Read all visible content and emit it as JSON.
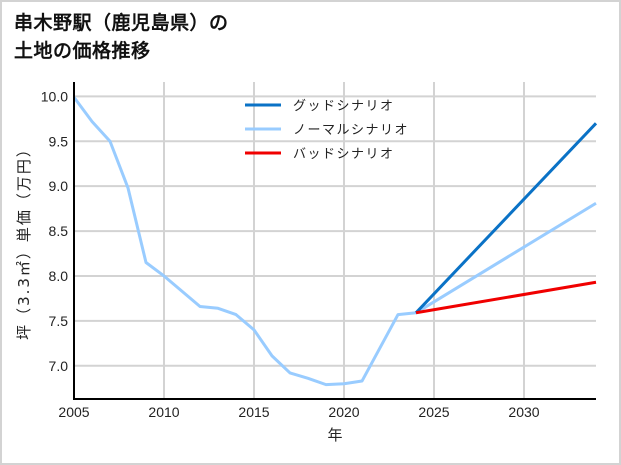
{
  "title": {
    "line1": "串木野駅（鹿児島県）の",
    "line2": "土地の価格推移"
  },
  "colors": {
    "good": "#0a72c6",
    "normal": "#99ccff",
    "bad": "#f00000",
    "grid": "#d3d3d3",
    "axis": "#000000",
    "frame": "#d3d3d3"
  },
  "chart_data": {
    "type": "line",
    "title": "串木野駅（鹿児島県）の土地の価格推移",
    "xlabel": "年",
    "ylabel": "坪（3.3㎡）単価（万円）",
    "xlim": [
      2005,
      2034
    ],
    "ylim": [
      6.63,
      10.16
    ],
    "grid": true,
    "legend_position": "upper center",
    "x_ticks": [
      2005,
      2010,
      2015,
      2020,
      2025,
      2030
    ],
    "y_ticks": [
      7.0,
      7.5,
      8.0,
      8.5,
      9.0,
      9.5,
      10.0
    ],
    "x_tick_labels": [
      "2005",
      "2010",
      "2015",
      "2020",
      "2025",
      "2030"
    ],
    "y_tick_labels": [
      "7.0",
      "7.5",
      "8.0",
      "8.5",
      "9.0",
      "9.5",
      "10.0"
    ],
    "series": [
      {
        "name": "グッドシナリオ",
        "color": "#0a72c6",
        "x": [
          2024,
          2034
        ],
        "values": [
          7.59,
          9.7
        ]
      },
      {
        "name": "ノーマルシナリオ",
        "color": "#99ccff",
        "x": [
          2005,
          2006,
          2007,
          2008,
          2009,
          2010,
          2011,
          2012,
          2013,
          2014,
          2015,
          2016,
          2017,
          2018,
          2019,
          2020,
          2021,
          2022,
          2023,
          2024,
          2034
        ],
        "values": [
          9.99,
          9.72,
          9.5,
          8.98,
          8.15,
          8.0,
          7.83,
          7.66,
          7.64,
          7.57,
          7.4,
          7.11,
          6.92,
          6.86,
          6.79,
          6.8,
          6.83,
          7.2,
          7.57,
          7.59,
          8.81
        ]
      },
      {
        "name": "バッドシナリオ",
        "color": "#f00000",
        "x": [
          2024,
          2034
        ],
        "values": [
          7.59,
          7.93
        ]
      }
    ]
  }
}
